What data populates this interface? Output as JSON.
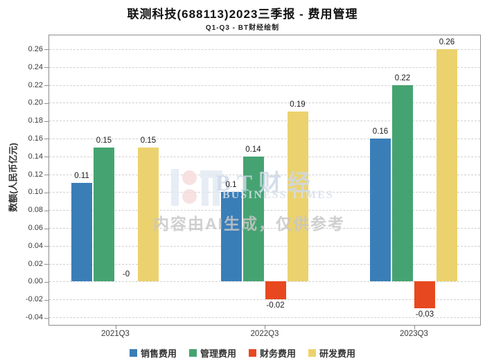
{
  "chart_data": {
    "type": "bar",
    "title": "联测科技(688113)2023三季报 - 费用管理",
    "subtitle": "Q1-Q3 - BT财经绘制",
    "ylabel": "数额(人民币亿元)",
    "categories": [
      "2021Q3",
      "2022Q3",
      "2023Q3"
    ],
    "series": [
      {
        "name": "销售费用",
        "color": "#3a7eb8",
        "values": [
          0.11,
          0.1,
          0.16
        ],
        "labels": [
          "0.11",
          "0.1",
          "0.16"
        ]
      },
      {
        "name": "管理费用",
        "color": "#45a371",
        "values": [
          0.15,
          0.14,
          0.22
        ],
        "labels": [
          "0.15",
          "0.14",
          "0.22"
        ]
      },
      {
        "name": "财务费用",
        "color": "#e8481f",
        "values": [
          0,
          -0.02,
          -0.03
        ],
        "labels": [
          "-0",
          "-0.02",
          "-0.03"
        ]
      },
      {
        "name": "研发费用",
        "color": "#ecd26e",
        "values": [
          0.15,
          0.19,
          0.26
        ],
        "labels": [
          "0.15",
          "0.19",
          "0.26"
        ]
      }
    ],
    "yticks": [
      0.26,
      0.24,
      0.22,
      0.2,
      0.18,
      0.16,
      0.14,
      0.12,
      0.1,
      0.08,
      0.06,
      0.04,
      0.02,
      0.0,
      -0.02,
      -0.04
    ],
    "ylim": [
      -0.0477,
      0.2754
    ],
    "grid": "horizontal-dashed",
    "legend_position": "bottom",
    "axis_colors": {
      "grid": "#cfcfcf",
      "border": "#8c8c8c",
      "tick_text": "#3a3a3a"
    }
  },
  "watermark": {
    "brand": "BT财经",
    "brand_sub": "BUSINESS TIMES",
    "disclaimer": "内容由AI生成，仅供参考"
  }
}
